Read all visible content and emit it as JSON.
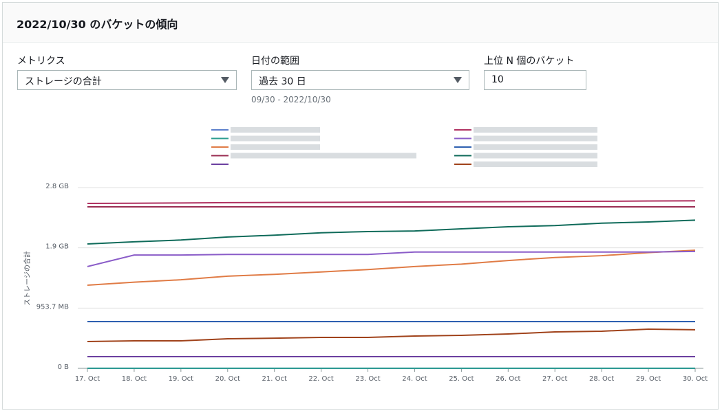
{
  "header": {
    "title": "2022/10/30 のバケットの傾向"
  },
  "controls": {
    "metric_label": "メトリクス",
    "metric_value": "ストレージの合計",
    "range_label": "日付の範囲",
    "range_value": "過去 30 日",
    "range_hint": "09/30 - 2022/10/30",
    "topn_label": "上位 N 個のバケット",
    "topn_value": "10"
  },
  "chart_data": {
    "type": "line",
    "y_label": "ストレージの合計",
    "categories": [
      "17. Oct",
      "18. Oct",
      "19. Oct",
      "20. Oct",
      "21. Oct",
      "22. Oct",
      "23. Oct",
      "24. Oct",
      "25. Oct",
      "26. Oct",
      "27. Oct",
      "28. Oct",
      "29. Oct",
      "30. Oct"
    ],
    "ylim": [
      0,
      3000000000
    ],
    "yticks": [
      {
        "value": 0,
        "label": "0 B"
      },
      {
        "value": 1000000000,
        "label": "953.7 MB"
      },
      {
        "value": 2000000000,
        "label": "1.9 GB"
      },
      {
        "value": 3000000000,
        "label": "2.8 GB"
      }
    ],
    "grid": true,
    "series": [
      {
        "color": "#5b7fcc",
        "values": [
          0,
          0,
          0,
          0,
          0,
          0,
          0,
          0,
          0,
          0,
          0,
          0,
          0,
          0
        ]
      },
      {
        "color": "#2a9d8f",
        "values": [
          2000000,
          2000000,
          2000000,
          2000000,
          2000000,
          2000000,
          2000000,
          2000000,
          2000000,
          2000000,
          2000000,
          2000000,
          2000000,
          2000000
        ]
      },
      {
        "color": "#e07b45",
        "values": [
          1380000000,
          1430000000,
          1470000000,
          1530000000,
          1560000000,
          1600000000,
          1640000000,
          1690000000,
          1730000000,
          1790000000,
          1840000000,
          1870000000,
          1920000000,
          1960000000
        ]
      },
      {
        "color": "#9a2c52",
        "values": [
          2680000000,
          2680000000,
          2680000000,
          2680000000,
          2680000000,
          2680000000,
          2680000000,
          2680000000,
          2680000000,
          2680000000,
          2680000000,
          2680000000,
          2680000000,
          2680000000
        ]
      },
      {
        "color": "#6b3fa0",
        "values": [
          194000000,
          194000000,
          194000000,
          194000000,
          194000000,
          194000000,
          194000000,
          194000000,
          194000000,
          194000000,
          194000000,
          194000000,
          194000000,
          194000000
        ]
      },
      {
        "color": "#b03060",
        "values": [
          2737000000,
          2740000000,
          2745000000,
          2750000000,
          2753000000,
          2755000000,
          2758000000,
          2760000000,
          2763000000,
          2766000000,
          2770000000,
          2773000000,
          2777000000,
          2780000000
        ]
      },
      {
        "color": "#8a5cc8",
        "values": [
          1690000000,
          1880000000,
          1880000000,
          1890000000,
          1890000000,
          1890000000,
          1890000000,
          1930000000,
          1930000000,
          1930000000,
          1930000000,
          1930000000,
          1930000000,
          1940000000
        ]
      },
      {
        "color": "#2d5fb0",
        "values": [
          776000000,
          776000000,
          776000000,
          776000000,
          776000000,
          776000000,
          776000000,
          776000000,
          776000000,
          776000000,
          776000000,
          776000000,
          776000000,
          776000000
        ]
      },
      {
        "color": "#0f6b5a",
        "values": [
          2065000000,
          2100000000,
          2130000000,
          2180000000,
          2210000000,
          2250000000,
          2270000000,
          2280000000,
          2315000000,
          2350000000,
          2370000000,
          2410000000,
          2430000000,
          2460000000
        ]
      },
      {
        "color": "#a0421a",
        "values": [
          445000000,
          456000000,
          456000000,
          490000000,
          500000000,
          513000000,
          513000000,
          536000000,
          548000000,
          570000000,
          605000000,
          616000000,
          650000000,
          640000000
        ]
      }
    ]
  }
}
